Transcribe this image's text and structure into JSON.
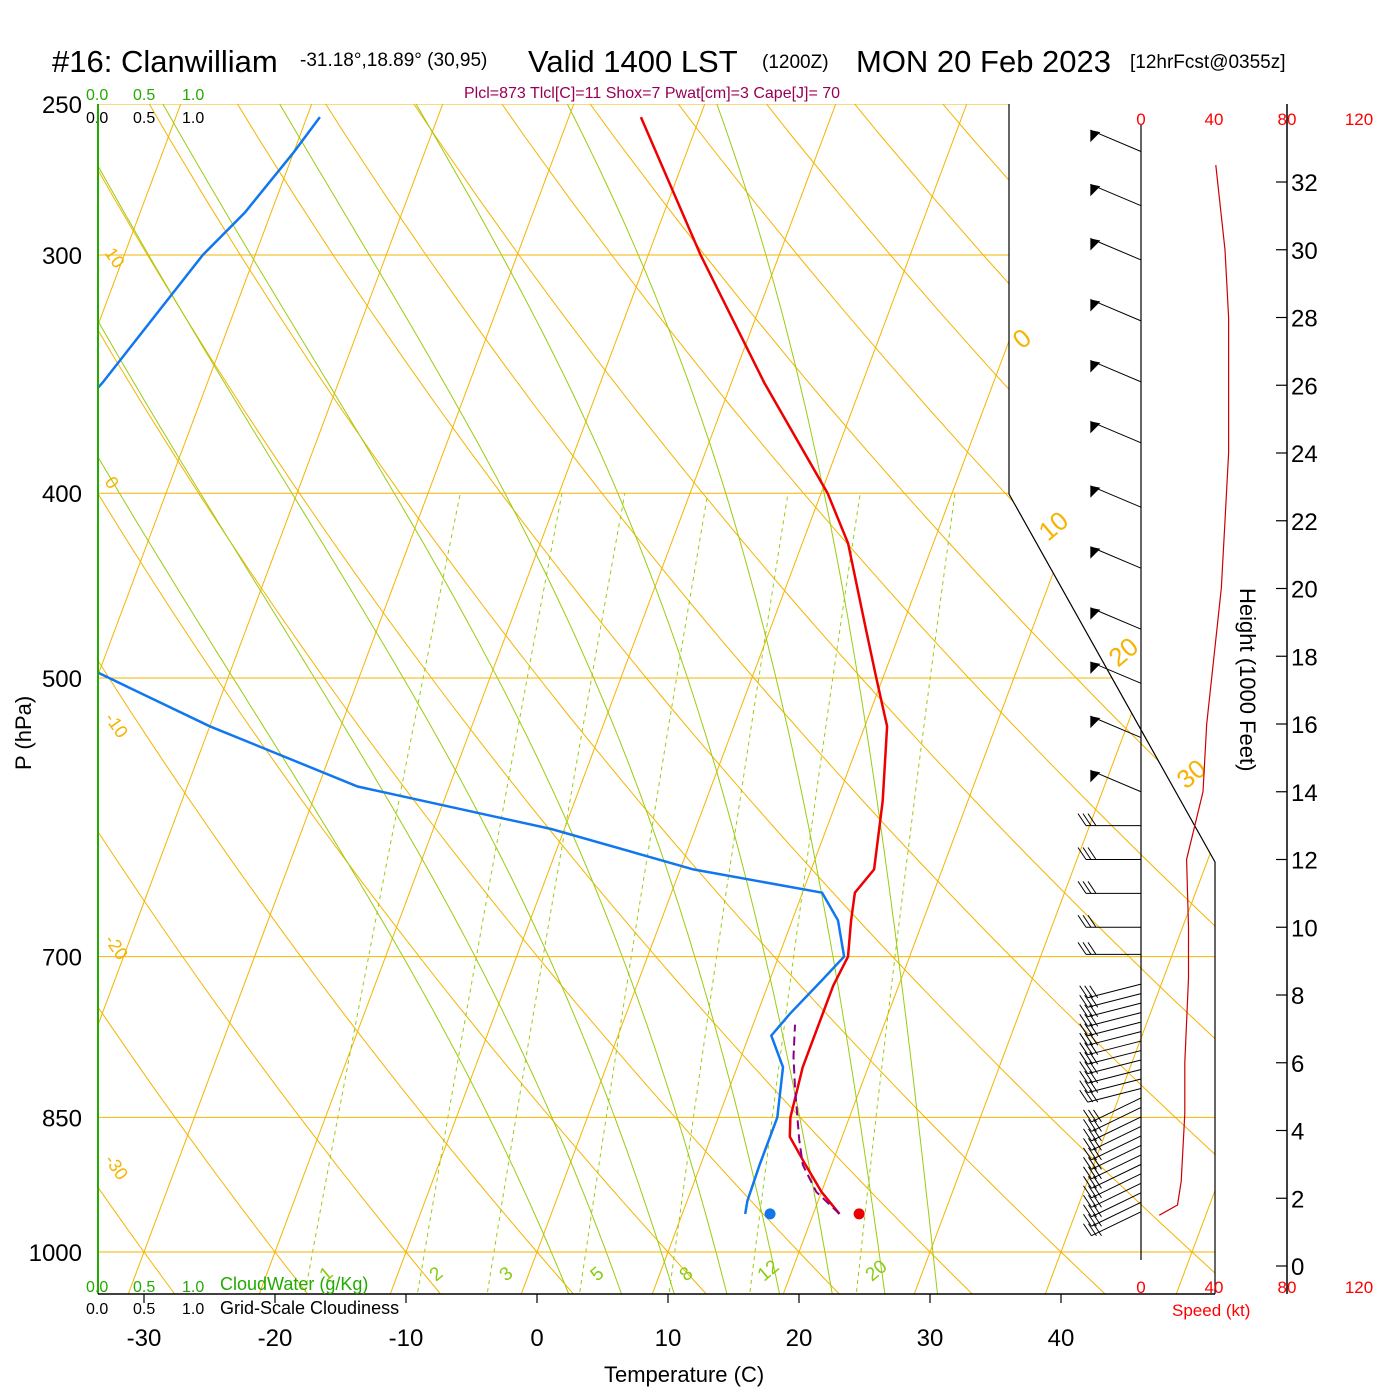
{
  "header": {
    "station": "#16: Clanwilliam",
    "coords": "-31.18°,18.89° (30,95)",
    "valid": "Valid 1400 LST",
    "utc": "(1200Z)",
    "date": "MON 20 Feb 2023",
    "forecast": "[12hrFcst@0355z]"
  },
  "stats": "Plcl=873 Tlcl[C]=11 Shox=7 Pwat[cm]=3 Cape[J]= 70",
  "chart_data": {
    "type": "skew-t log-p sounding",
    "pressure_levels": [
      250,
      300,
      400,
      500,
      700,
      850,
      1000
    ],
    "pressure_axis_label": "P (hPa)",
    "temperature_ticks": [
      -30,
      -20,
      -10,
      0,
      10,
      20,
      30,
      40
    ],
    "temperature_axis_label": "Temperature (C)",
    "height_ticks": [
      0,
      2,
      4,
      6,
      8,
      10,
      12,
      14,
      16,
      18,
      20,
      22,
      24,
      26,
      28,
      30,
      32
    ],
    "height_axis_label": "Height (1000 Feet)",
    "speed_ticks": [
      "0",
      "40",
      "80",
      "120"
    ],
    "speed_axis_label": "Speed (kt)",
    "cloudwater_ticks": [
      "0.0",
      "0.5",
      "1.0"
    ],
    "cloudwater_label": "CloudWater (g/Kg)",
    "cloudiness_ticks": [
      "0.0",
      "0.5",
      "1.0"
    ],
    "cloudiness_label": "Grid-Scale Cloudiness",
    "isotherm_labels": [
      "10",
      "0",
      "-10",
      "-20",
      "-30"
    ],
    "adiabat_labels": [
      "0",
      "10",
      "20",
      "30"
    ],
    "mixing_ratio_labels": [
      "1",
      "2",
      "3",
      "5",
      "8",
      "12",
      "20"
    ],
    "temperature_profile": [
      {
        "p": 955,
        "t": 22.0
      },
      {
        "p": 930,
        "t": 20.0
      },
      {
        "p": 900,
        "t": 18.0
      },
      {
        "p": 870,
        "t": 16.0
      },
      {
        "p": 850,
        "t": 15.5
      },
      {
        "p": 800,
        "t": 15.0
      },
      {
        "p": 760,
        "t": 15.0
      },
      {
        "p": 725,
        "t": 15.0
      },
      {
        "p": 700,
        "t": 15.3
      },
      {
        "p": 670,
        "t": 14.5
      },
      {
        "p": 648,
        "t": 14.0
      },
      {
        "p": 630,
        "t": 14.8
      },
      {
        "p": 580,
        "t": 13.5
      },
      {
        "p": 530,
        "t": 11.7
      },
      {
        "p": 500,
        "t": 9.5
      },
      {
        "p": 470,
        "t": 7.2
      },
      {
        "p": 425,
        "t": 3.5
      },
      {
        "p": 400,
        "t": 0.5
      },
      {
        "p": 350,
        "t": -7.5
      },
      {
        "p": 300,
        "t": -16.0
      },
      {
        "p": 254,
        "t": -24.5
      }
    ],
    "dewpoint_profile": [
      {
        "p": 955,
        "t": 14.8
      },
      {
        "p": 940,
        "t": 14.6
      },
      {
        "p": 900,
        "t": 14.5
      },
      {
        "p": 850,
        "t": 14.5
      },
      {
        "p": 800,
        "t": 13.5
      },
      {
        "p": 770,
        "t": 11.7
      },
      {
        "p": 750,
        "t": 12.5
      },
      {
        "p": 720,
        "t": 14.0
      },
      {
        "p": 700,
        "t": 15.0
      },
      {
        "p": 670,
        "t": 13.5
      },
      {
        "p": 648,
        "t": 11.5
      },
      {
        "p": 630,
        "t": 1.0
      },
      {
        "p": 600,
        "t": -11.0
      },
      {
        "p": 570,
        "t": -27.0
      },
      {
        "p": 530,
        "t": -40.0
      },
      {
        "p": 497,
        "t": -50.0
      },
      {
        "p": 450,
        "t": -57.0
      },
      {
        "p": 400,
        "t": -60.0
      },
      {
        "p": 383,
        "t": -61.0
      },
      {
        "p": 350,
        "t": -58.0
      },
      {
        "p": 300,
        "t": -54.0
      },
      {
        "p": 285,
        "t": -52.0
      },
      {
        "p": 265,
        "t": -50.0
      },
      {
        "p": 254,
        "t": -49.0
      }
    ],
    "parcel_profile": [
      {
        "p": 955,
        "t": 22.0
      },
      {
        "p": 930,
        "t": 19.6
      },
      {
        "p": 900,
        "t": 17.8
      },
      {
        "p": 873,
        "t": 16.8
      },
      {
        "p": 820,
        "t": 15.0
      },
      {
        "p": 790,
        "t": 14.0
      },
      {
        "p": 760,
        "t": 13.2
      }
    ],
    "surface_temperature": {
      "p": 955,
      "t": 23.5
    },
    "surface_dewpoint": {
      "p": 955,
      "t": 16.7
    },
    "wind_speed_profile": [
      {
        "h": 1.5,
        "s": 10
      },
      {
        "h": 1.8,
        "s": 20
      },
      {
        "h": 2.5,
        "s": 22
      },
      {
        "h": 4.5,
        "s": 24
      },
      {
        "h": 6.0,
        "s": 24
      },
      {
        "h": 8.5,
        "s": 26
      },
      {
        "h": 10.0,
        "s": 26
      },
      {
        "h": 12.0,
        "s": 25
      },
      {
        "h": 14.0,
        "s": 34
      },
      {
        "h": 16.0,
        "s": 36
      },
      {
        "h": 18.0,
        "s": 40
      },
      {
        "h": 20.0,
        "s": 44
      },
      {
        "h": 22.0,
        "s": 46
      },
      {
        "h": 24.0,
        "s": 48
      },
      {
        "h": 26.0,
        "s": 48
      },
      {
        "h": 28.0,
        "s": 48
      },
      {
        "h": 30.0,
        "s": 46
      },
      {
        "h": 32.5,
        "s": 41
      }
    ]
  },
  "colors": {
    "isotherm": "#f5b400",
    "adiabat": "#99cc11",
    "temperature": "#ee0000",
    "dewpoint": "#1177ee",
    "parcel": "#880088",
    "speed": "#cc0000",
    "cloudwater_axis": "#22aa00"
  }
}
